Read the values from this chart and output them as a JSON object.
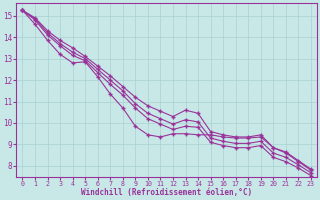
{
  "xlabel": "Windchill (Refroidissement éolien,°C)",
  "xlim": [
    -0.5,
    23.5
  ],
  "ylim": [
    7.5,
    15.6
  ],
  "xticks": [
    0,
    1,
    2,
    3,
    4,
    5,
    6,
    7,
    8,
    9,
    10,
    11,
    12,
    13,
    14,
    15,
    16,
    17,
    18,
    19,
    20,
    21,
    22,
    23
  ],
  "yticks": [
    8,
    9,
    10,
    11,
    12,
    13,
    14,
    15
  ],
  "bg_color": "#c8e8e8",
  "line_color": "#993399",
  "grid_color": "#a8d0d0",
  "line_top": [
    15.25,
    14.9,
    14.3,
    13.85,
    13.5,
    13.1,
    12.65,
    12.2,
    11.7,
    11.2,
    10.8,
    10.55,
    10.3,
    10.6,
    10.45,
    9.6,
    9.45,
    9.35,
    9.35,
    9.45,
    8.85,
    8.65,
    8.25,
    7.85
  ],
  "line_mid1": [
    15.25,
    14.85,
    14.2,
    13.7,
    13.3,
    13.0,
    12.5,
    12.0,
    11.5,
    10.9,
    10.45,
    10.2,
    9.95,
    10.15,
    10.05,
    9.3,
    9.15,
    9.05,
    9.05,
    9.15,
    8.6,
    8.4,
    8.05,
    7.68
  ],
  "line_mid2": [
    15.25,
    14.8,
    14.1,
    13.6,
    13.15,
    12.9,
    12.35,
    11.8,
    11.3,
    10.7,
    10.2,
    9.95,
    9.7,
    9.85,
    9.8,
    9.1,
    8.95,
    8.85,
    8.85,
    8.95,
    8.4,
    8.2,
    7.9,
    7.55
  ],
  "line_low": [
    15.25,
    14.6,
    13.85,
    13.2,
    12.8,
    12.85,
    12.15,
    11.35,
    10.7,
    9.85,
    9.45,
    9.35,
    9.5,
    9.5,
    9.45,
    9.45,
    9.35,
    9.3,
    9.3,
    9.35,
    8.85,
    8.6,
    8.2,
    7.8
  ]
}
